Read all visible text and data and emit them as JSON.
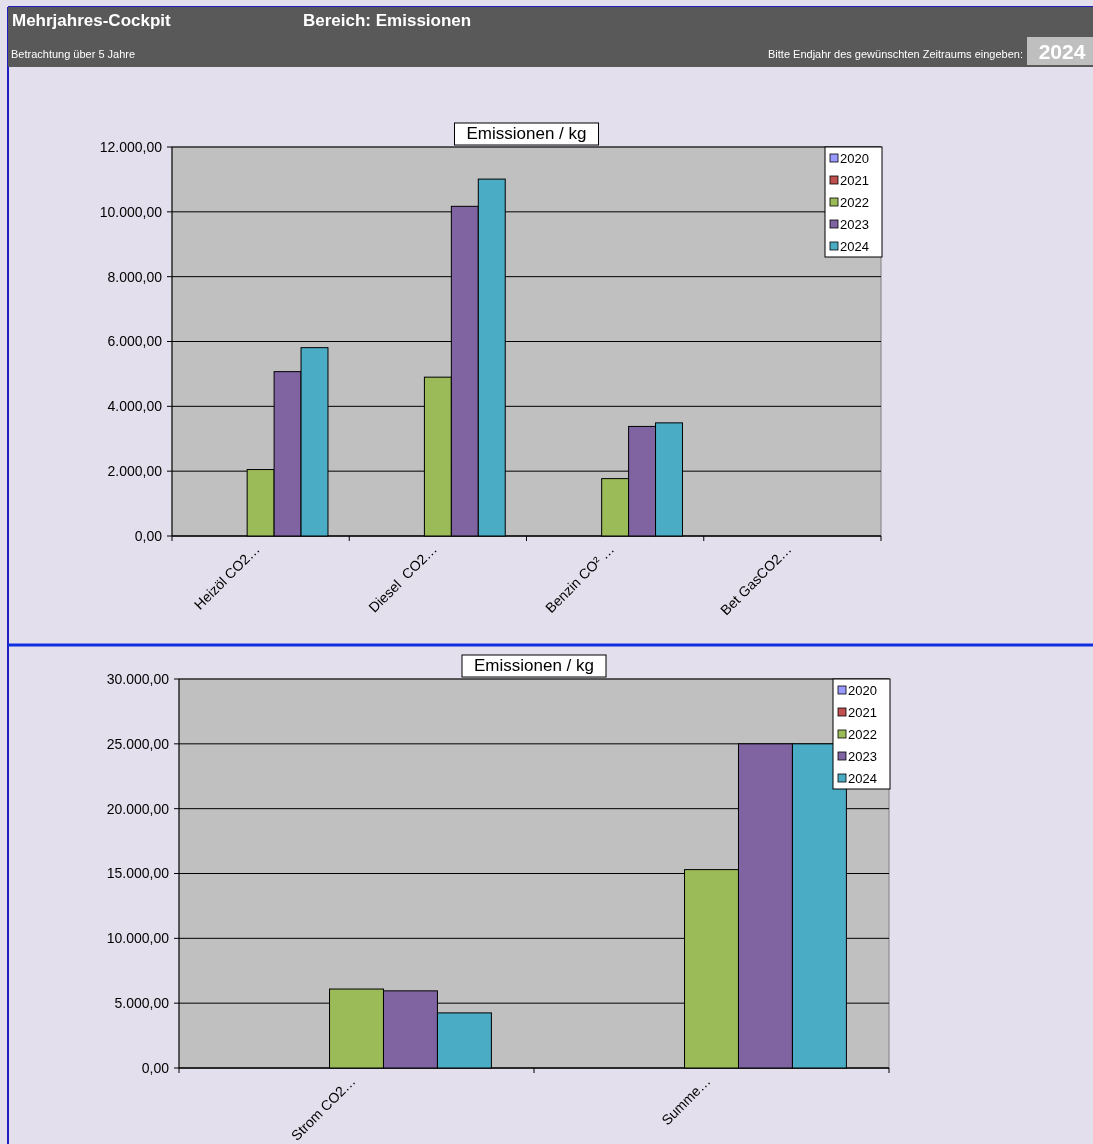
{
  "chart_data": [
    {
      "type": "other",
      "title": "Mehrjahres-Cockpit",
      "subtitle": "Bereich: Emissionen",
      "annotations": [
        "Betrachtung über 5 Jahre",
        "Bitte Endjahr des gewünschten Zeitraums eingeben:",
        "2024"
      ]
    },
    {
      "type": "bar",
      "title": "Emissionen / kg",
      "categories": [
        "Heizöl CO2…",
        "Diesel  CO2…",
        "Benzin CO² …",
        "Bet GasCO2…"
      ],
      "series": [
        {
          "name": "2020",
          "color": "#9999ff",
          "values": [
            null,
            null,
            null,
            null
          ]
        },
        {
          "name": "2021",
          "color": "#c0504d",
          "values": [
            null,
            null,
            null,
            null
          ]
        },
        {
          "name": "2022",
          "color": "#9bbb59",
          "values": [
            2050,
            4900,
            1770,
            null
          ]
        },
        {
          "name": "2023",
          "color": "#8064a2",
          "values": [
            5070,
            10170,
            3380,
            null
          ]
        },
        {
          "name": "2024",
          "color": "#4bacc6",
          "values": [
            5810,
            11010,
            3490,
            null
          ]
        }
      ],
      "ylim": [
        0,
        12000
      ],
      "yticks": [
        {
          "value": 0,
          "label": "0,00"
        },
        {
          "value": 2000,
          "label": "2.000,00"
        },
        {
          "value": 4000,
          "label": "4.000,00"
        },
        {
          "value": 6000,
          "label": "6.000,00"
        },
        {
          "value": 8000,
          "label": "8.000,00"
        },
        {
          "value": 10000,
          "label": "10.000,00"
        },
        {
          "value": 12000,
          "label": "12.000,00"
        }
      ],
      "grid": "y",
      "legend": "top right"
    },
    {
      "type": "bar",
      "title": "Emissionen / kg",
      "categories": [
        "Strom CO2…",
        "Summe…"
      ],
      "series": [
        {
          "name": "2020",
          "color": "#9999ff",
          "values": [
            null,
            null
          ]
        },
        {
          "name": "2021",
          "color": "#c0504d",
          "values": [
            null,
            null
          ]
        },
        {
          "name": "2022",
          "color": "#9bbb59",
          "values": [
            6090,
            15300
          ]
        },
        {
          "name": "2023",
          "color": "#8064a2",
          "values": [
            5950,
            25000
          ]
        },
        {
          "name": "2024",
          "color": "#4bacc6",
          "values": [
            4250,
            25000
          ]
        }
      ],
      "ylim": [
        0,
        30000
      ],
      "yticks": [
        {
          "value": 0,
          "label": "0,00"
        },
        {
          "value": 5000,
          "label": "5.000,00"
        },
        {
          "value": 10000,
          "label": "10.000,00"
        },
        {
          "value": 15000,
          "label": "15.000,00"
        },
        {
          "value": 20000,
          "label": "20.000,00"
        },
        {
          "value": 25000,
          "label": "25.000,00"
        },
        {
          "value": 30000,
          "label": "30.000,00"
        }
      ],
      "grid": "y",
      "legend": "top right"
    }
  ]
}
